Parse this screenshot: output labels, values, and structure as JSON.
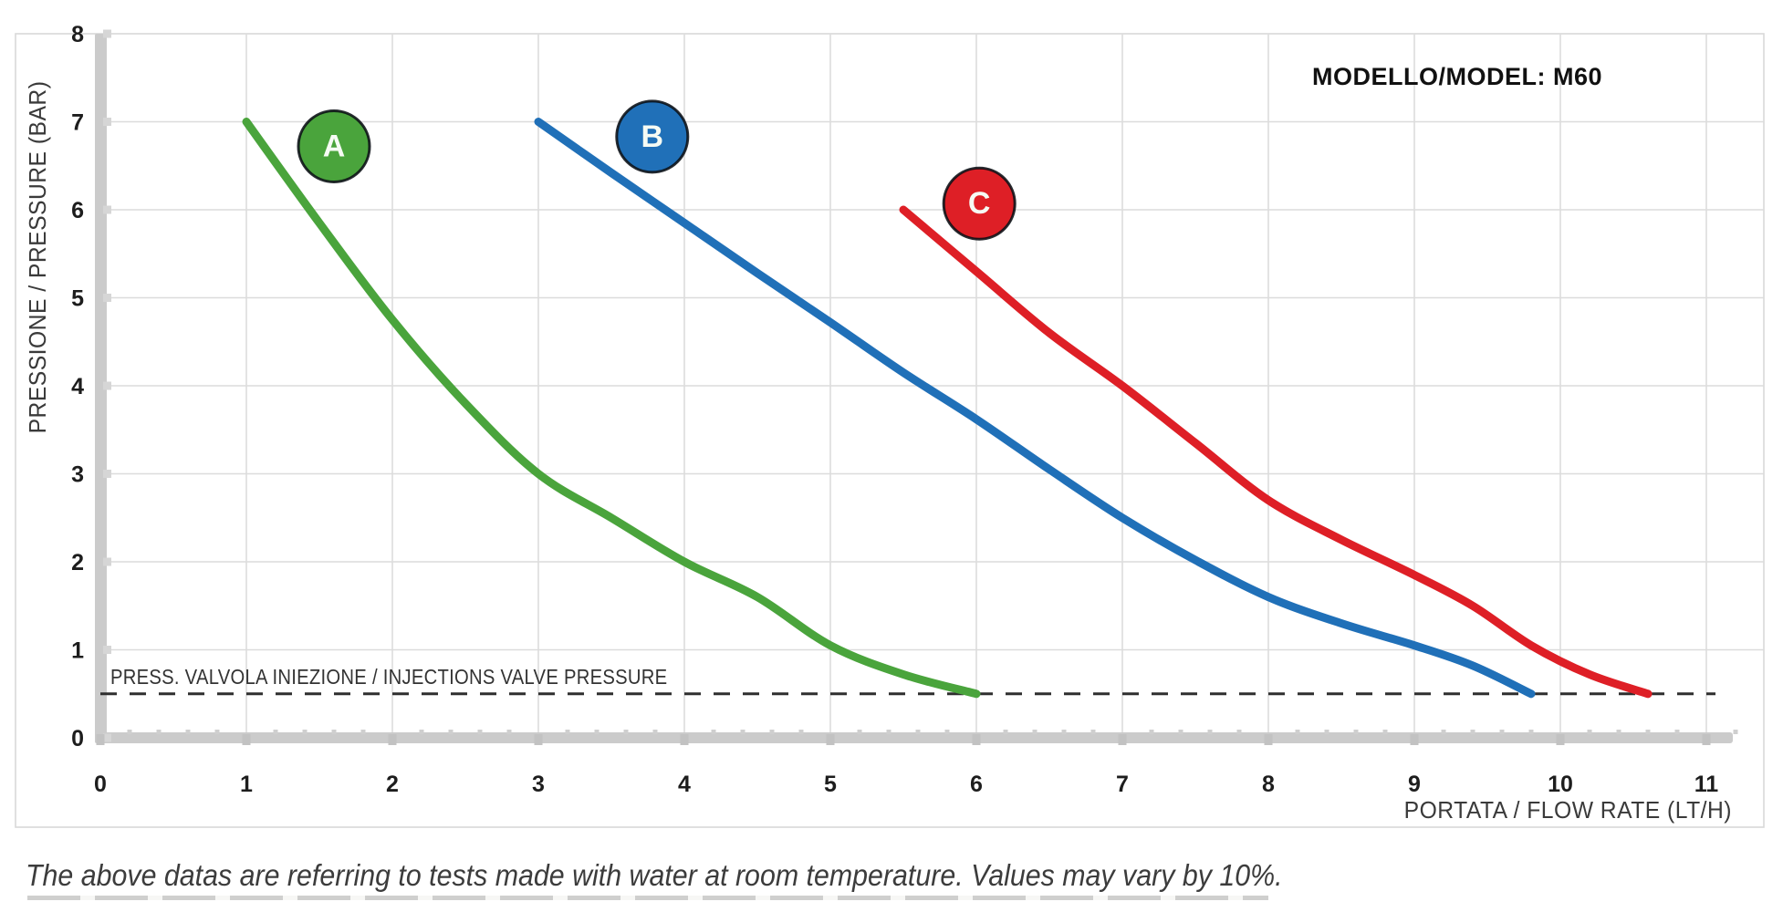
{
  "page": {
    "caption": "The above datas are referring to tests made with water at room temperature. Values may vary by 10%."
  },
  "colors": {
    "curve_a_green": "#4AA43C",
    "curve_b_blue": "#2070B8",
    "curve_c_red": "#DE1F26",
    "gridline": "#DCDCDC",
    "axis_bar": "#CBCBCB",
    "frame": "#D9D9D9",
    "dashed_line": "#2F2F2F",
    "text": "#3A3A3A"
  },
  "chart_data": {
    "type": "line",
    "title": "MODELLO/MODEL: M60",
    "xlabel": "PORTATA / FLOW RATE (LT/H)",
    "ylabel": "PRESSIONE / PRESSURE (BAR)",
    "xlim": [
      0,
      11.4
    ],
    "ylim": [
      0,
      8
    ],
    "xticks": [
      0,
      1,
      2,
      3,
      4,
      5,
      6,
      7,
      8,
      9,
      10,
      11
    ],
    "yticks": [
      0,
      1,
      2,
      3,
      4,
      5,
      6,
      7,
      8
    ],
    "grid": true,
    "legend_position": "bubbles-on-curves",
    "annotation": {
      "label": "PRESS. VALVOLA INIEZIONE / INJECTIONS VALVE PRESSURE",
      "value_bar": 0.5,
      "style": "dashed-horizontal"
    },
    "series": [
      {
        "name": "A",
        "color": "#4AA43C",
        "bubble": {
          "x": 1.6,
          "y": 6.72
        },
        "points": [
          [
            1,
            7
          ],
          [
            1.5,
            5.85
          ],
          [
            2,
            4.75
          ],
          [
            2.5,
            3.8
          ],
          [
            3,
            3.0
          ],
          [
            3.5,
            2.5
          ],
          [
            4,
            2.0
          ],
          [
            4.5,
            1.6
          ],
          [
            5,
            1.05
          ],
          [
            5.5,
            0.72
          ],
          [
            6,
            0.5
          ]
        ]
      },
      {
        "name": "B",
        "color": "#2070B8",
        "bubble": {
          "x": 3.78,
          "y": 6.83
        },
        "points": [
          [
            3,
            7
          ],
          [
            3.5,
            6.42
          ],
          [
            4,
            5.85
          ],
          [
            4.5,
            5.28
          ],
          [
            5,
            4.72
          ],
          [
            5.5,
            4.15
          ],
          [
            6,
            3.62
          ],
          [
            6.5,
            3.05
          ],
          [
            7,
            2.5
          ],
          [
            7.5,
            2.02
          ],
          [
            8,
            1.6
          ],
          [
            8.5,
            1.3
          ],
          [
            9,
            1.05
          ],
          [
            9.4,
            0.82
          ],
          [
            9.8,
            0.5
          ]
        ]
      },
      {
        "name": "C",
        "color": "#DE1F26",
        "bubble": {
          "x": 6.02,
          "y": 6.07
        },
        "points": [
          [
            5.5,
            6.0
          ],
          [
            6,
            5.3
          ],
          [
            6.5,
            4.6
          ],
          [
            7,
            4.0
          ],
          [
            7.5,
            3.35
          ],
          [
            8,
            2.7
          ],
          [
            8.5,
            2.25
          ],
          [
            9,
            1.85
          ],
          [
            9.4,
            1.5
          ],
          [
            9.8,
            1.05
          ],
          [
            10.2,
            0.72
          ],
          [
            10.6,
            0.5
          ]
        ]
      }
    ]
  }
}
